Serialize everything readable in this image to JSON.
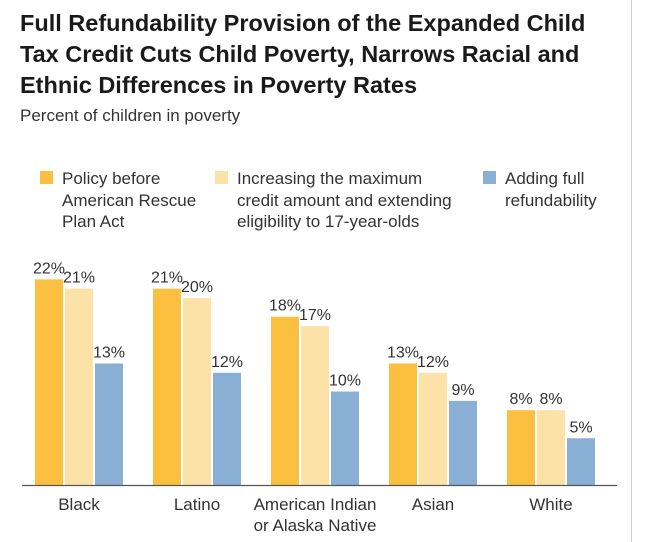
{
  "chart_data": {
    "type": "bar",
    "title": "Full Refundability Provision of the Expanded Child Tax Credit Cuts Child Poverty, Narrows Racial and Ethnic Differences in Poverty Rates",
    "subtitle": "Percent of children in poverty",
    "xlabel": "",
    "ylabel": "",
    "categories": [
      "Black",
      "Latino",
      "American Indian\nor Alaska Native",
      "Asian",
      "White"
    ],
    "series": [
      {
        "name": "Policy before\nAmerican Rescue\nPlan Act",
        "values": [
          22,
          21,
          18,
          13,
          8
        ],
        "labels": [
          "22%",
          "21%",
          "18%",
          "13%",
          "8%"
        ],
        "color": "#FBC040"
      },
      {
        "name": "Increasing the maximum\ncredit amount and extending\neligibility to 17-year-olds",
        "values": [
          21,
          20,
          17,
          12,
          8
        ],
        "labels": [
          "21%",
          "20%",
          "17%",
          "12%",
          "8%"
        ],
        "color": "#FDE2A8"
      },
      {
        "name": "Adding full\nrefundability",
        "values": [
          13,
          12,
          10,
          9,
          5
        ],
        "labels": [
          "13%",
          "12%",
          "10%",
          "9%",
          "5%"
        ],
        "color": "#8AAFD4"
      }
    ],
    "ylim": [
      0,
      23
    ],
    "grid": false,
    "legend_position": "top"
  }
}
